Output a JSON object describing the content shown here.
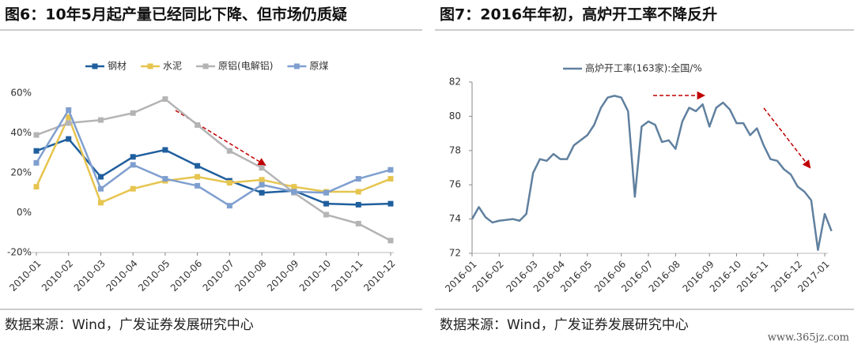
{
  "chart_data": [
    {
      "type": "line",
      "title": "图6：10年5月起产量已经同比下降、但市场仍质疑",
      "categories": [
        "2010-01",
        "2010-02",
        "2010-03",
        "2010-04",
        "2010-05",
        "2010-06",
        "2010-07",
        "2010-08",
        "2010-09",
        "2010-10",
        "2010-11",
        "2010-12"
      ],
      "series": [
        {
          "name": "钢材",
          "color": "#1f5f9e",
          "values": [
            31,
            37,
            18,
            28,
            31.5,
            23.5,
            16,
            10,
            11,
            4.5,
            4,
            4.5
          ]
        },
        {
          "name": "水泥",
          "color": "#e6c550",
          "values": [
            13,
            48,
            5,
            12,
            16,
            18,
            15,
            16.5,
            13,
            10.5,
            10.5,
            17
          ]
        },
        {
          "name": "原铝(电解铝)",
          "color": "#b4b4b4",
          "values": [
            39,
            45,
            46.5,
            50,
            57,
            44,
            31,
            22.5,
            10,
            -1,
            -5.5,
            -14
          ]
        },
        {
          "name": "原煤",
          "color": "#7f9fcf",
          "values": [
            25,
            51.5,
            12,
            24,
            17,
            13.5,
            3.5,
            14,
            10.5,
            10,
            17,
            21.5
          ]
        }
      ],
      "markers": true,
      "legend": "top",
      "ylim": [
        -20,
        60
      ],
      "yticks": [
        {
          "value": -20,
          "label": "-20%"
        },
        {
          "value": 0,
          "label": "0%"
        },
        {
          "value": 20,
          "label": "20%"
        },
        {
          "value": 40,
          "label": "40%"
        },
        {
          "value": 60,
          "label": "60%"
        }
      ],
      "grid": false,
      "source": "数据来源：Wind，广发证券发展研究中心"
    },
    {
      "type": "line",
      "title": "图7：2016年年初，高炉开工率不降反升",
      "categories": [
        "2016-01",
        null,
        null,
        null,
        "2016-02",
        null,
        null,
        null,
        null,
        "2016-03",
        null,
        null,
        null,
        "2016-04",
        null,
        null,
        null,
        "2016-05",
        null,
        null,
        null,
        null,
        "2016-06",
        null,
        null,
        null,
        "2016-07",
        null,
        null,
        null,
        "2016-08",
        null,
        null,
        null,
        null,
        "2016-09",
        null,
        null,
        null,
        "2016-10",
        null,
        null,
        null,
        "2016-11",
        null,
        null,
        null,
        null,
        "2016-12",
        null,
        null,
        null,
        "2017-01",
        null
      ],
      "series": [
        {
          "name": "高炉开工率(163家):全国/%",
          "color": "#60809f",
          "values": [
            74.0,
            74.7,
            74.1,
            73.8,
            73.9,
            73.95,
            74.0,
            73.9,
            74.3,
            76.7,
            77.5,
            77.4,
            77.8,
            77.5,
            77.5,
            78.3,
            78.6,
            78.9,
            79.5,
            80.5,
            81.1,
            81.2,
            81.1,
            80.3,
            75.3,
            79.4,
            79.7,
            79.5,
            78.5,
            78.6,
            78.1,
            79.7,
            80.5,
            80.3,
            80.7,
            79.4,
            80.5,
            80.8,
            80.4,
            79.6,
            79.6,
            78.9,
            79.3,
            78.3,
            77.5,
            77.4,
            76.9,
            76.6,
            75.9,
            75.6,
            75.1,
            72.2,
            74.3,
            73.3
          ]
        }
      ],
      "markers": false,
      "legend": "top",
      "ylim": [
        72,
        82
      ],
      "yticks": [
        72,
        74,
        76,
        78,
        80,
        82
      ],
      "grid": false,
      "source": "数据来源：Wind，广发证券发展研究中心"
    }
  ],
  "watermark": "www.365jz.com"
}
